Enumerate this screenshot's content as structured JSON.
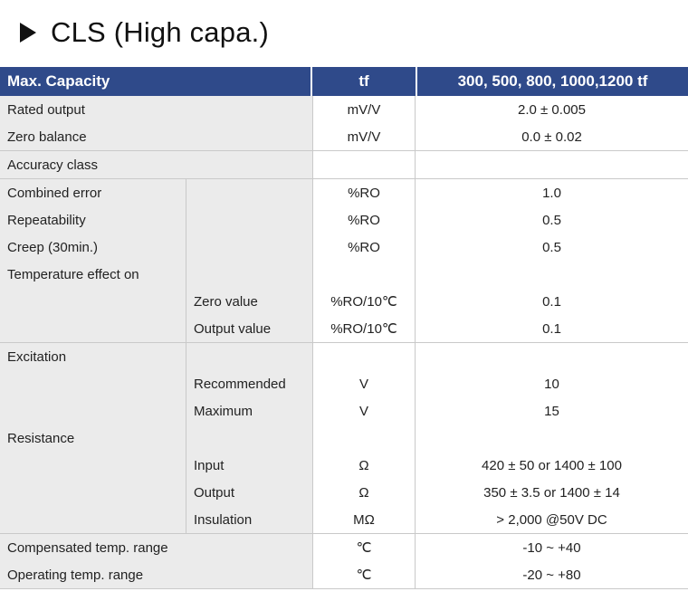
{
  "title": "CLS (High capa.)",
  "header": {
    "col1": "Max. Capacity",
    "col2": "tf",
    "col3": "300, 500, 800, 1000,1200 tf"
  },
  "sections": [
    {
      "rows": [
        {
          "main": "Rated output",
          "sub": "",
          "unit": "mV/V",
          "value": "2.0 ± 0.005"
        },
        {
          "main": "Zero balance",
          "sub": "",
          "unit": "mV/V",
          "value": "0.0 ± 0.02"
        }
      ]
    },
    {
      "rows": [
        {
          "main": "Accuracy class",
          "sub": "",
          "unit": "",
          "value": ""
        }
      ]
    },
    {
      "rows": [
        {
          "main": "Combined error",
          "sub": "",
          "unit": "%RO",
          "value": "1.0"
        },
        {
          "main": "Repeatability",
          "sub": "",
          "unit": "%RO",
          "value": "0.5"
        },
        {
          "main": "Creep (30min.)",
          "sub": "",
          "unit": "%RO",
          "value": "0.5"
        },
        {
          "main": "Temperature effect on",
          "sub": "",
          "unit": "",
          "value": ""
        },
        {
          "main": "",
          "sub": "Zero value",
          "unit": "%RO/10℃",
          "value": "0.1"
        },
        {
          "main": "",
          "sub": "Output  value",
          "unit": "%RO/10℃",
          "value": "0.1"
        }
      ]
    },
    {
      "rows": [
        {
          "main": "Excitation",
          "sub": "",
          "unit": "",
          "value": ""
        },
        {
          "main": "",
          "sub": "Recommended",
          "unit": "V",
          "value": "10"
        },
        {
          "main": "",
          "sub": "Maximum",
          "unit": "V",
          "value": "15"
        },
        {
          "main": "Resistance",
          "sub": "",
          "unit": "",
          "value": ""
        },
        {
          "main": "",
          "sub": "Input",
          "unit": "Ω",
          "value": "420 ± 50 or 1400 ± 100"
        },
        {
          "main": "",
          "sub": "Output",
          "unit": "Ω",
          "value": "350 ± 3.5 or 1400 ± 14"
        },
        {
          "main": "",
          "sub": "Insulation",
          "unit": "MΩ",
          "value": "> 2,000 @50V DC"
        }
      ]
    },
    {
      "rows": [
        {
          "main": "Compensated temp. range",
          "sub": "",
          "unit": "℃",
          "value": "-10 ~ +40"
        },
        {
          "main": "Operating temp. range",
          "sub": "",
          "unit": "℃",
          "value": "-20 ~ +80"
        }
      ]
    }
  ]
}
